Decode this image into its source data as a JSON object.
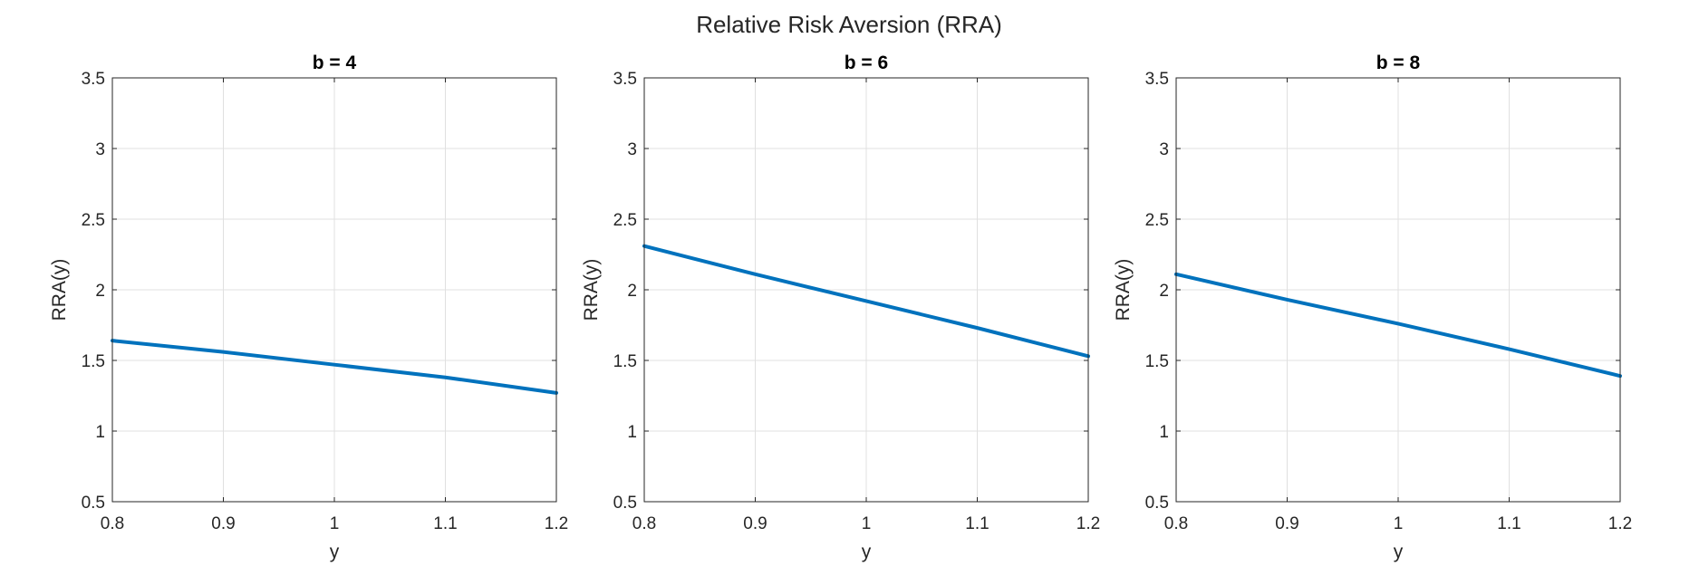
{
  "figure": {
    "title": "Relative Risk Aversion (RRA)"
  },
  "colors": {
    "series": "#0072BD",
    "grid": "#e0e0e0",
    "axes": "#262626"
  },
  "chart_data": [
    {
      "type": "line",
      "title": "b = 4",
      "xlabel": "y",
      "ylabel": "RRA(y)",
      "xlim": [
        0.8,
        1.2
      ],
      "ylim": [
        0.5,
        3.5
      ],
      "xticks": [
        0.8,
        0.9,
        1.0,
        1.1,
        1.2
      ],
      "yticks": [
        0.5,
        1.0,
        1.5,
        2.0,
        2.5,
        3.0,
        3.5
      ],
      "xtick_labels": [
        "0.8",
        "0.9",
        "1",
        "1.1",
        "1.2"
      ],
      "ytick_labels": [
        "0.5",
        "1",
        "1.5",
        "2",
        "2.5",
        "3",
        "3.5"
      ],
      "grid": true,
      "series": [
        {
          "x": [
            0.8,
            0.9,
            1.0,
            1.1,
            1.2
          ],
          "values": [
            1.64,
            1.56,
            1.47,
            1.38,
            1.27
          ]
        }
      ]
    },
    {
      "type": "line",
      "title": "b = 6",
      "xlabel": "y",
      "ylabel": "RRA(y)",
      "xlim": [
        0.8,
        1.2
      ],
      "ylim": [
        0.5,
        3.5
      ],
      "xticks": [
        0.8,
        0.9,
        1.0,
        1.1,
        1.2
      ],
      "yticks": [
        0.5,
        1.0,
        1.5,
        2.0,
        2.5,
        3.0,
        3.5
      ],
      "xtick_labels": [
        "0.8",
        "0.9",
        "1",
        "1.1",
        "1.2"
      ],
      "ytick_labels": [
        "0.5",
        "1",
        "1.5",
        "2",
        "2.5",
        "3",
        "3.5"
      ],
      "grid": true,
      "series": [
        {
          "x": [
            0.8,
            0.9,
            1.0,
            1.1,
            1.2
          ],
          "values": [
            2.31,
            2.11,
            1.92,
            1.73,
            1.53
          ]
        }
      ]
    },
    {
      "type": "line",
      "title": "b = 8",
      "xlabel": "y",
      "ylabel": "RRA(y)",
      "xlim": [
        0.8,
        1.2
      ],
      "ylim": [
        0.5,
        3.5
      ],
      "xticks": [
        0.8,
        0.9,
        1.0,
        1.1,
        1.2
      ],
      "yticks": [
        0.5,
        1.0,
        1.5,
        2.0,
        2.5,
        3.0,
        3.5
      ],
      "xtick_labels": [
        "0.8",
        "0.9",
        "1",
        "1.1",
        "1.2"
      ],
      "ytick_labels": [
        "0.5",
        "1",
        "1.5",
        "2",
        "2.5",
        "3",
        "3.5"
      ],
      "grid": true,
      "series": [
        {
          "x": [
            0.8,
            0.9,
            1.0,
            1.1,
            1.2
          ],
          "values": [
            2.11,
            1.93,
            1.76,
            1.58,
            1.39
          ]
        }
      ]
    }
  ]
}
